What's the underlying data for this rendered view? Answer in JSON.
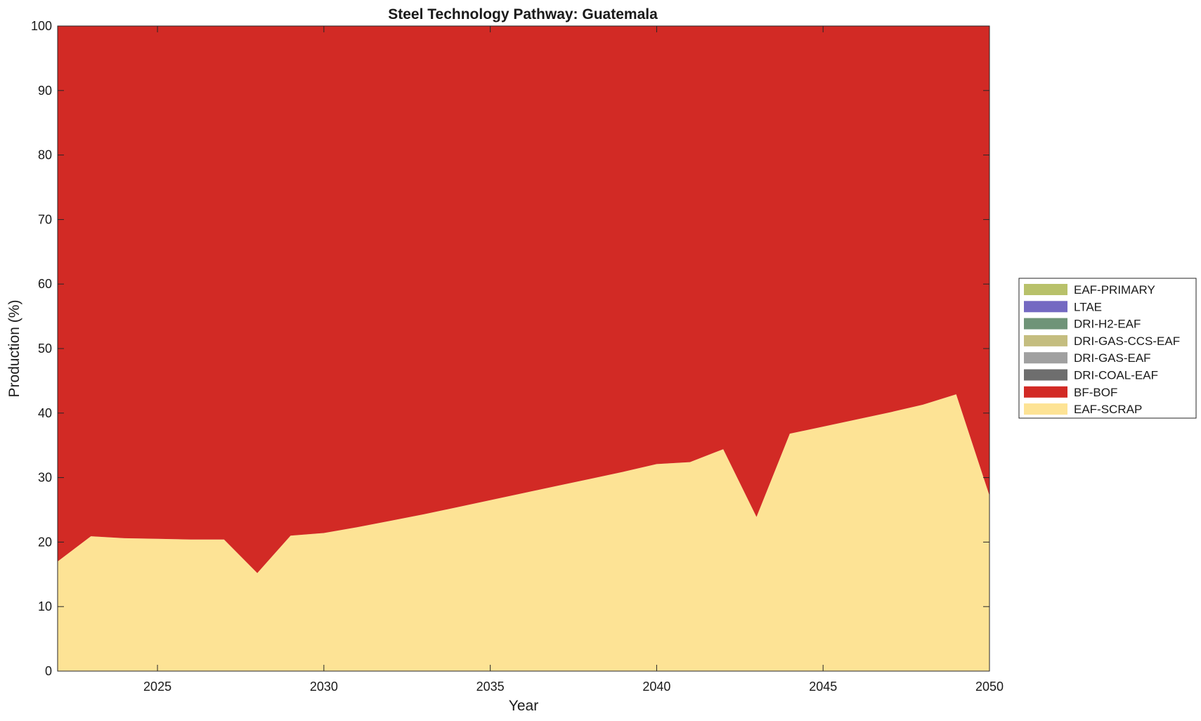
{
  "chart_data": {
    "type": "area",
    "stacked": true,
    "title": "Steel Technology Pathway: Guatemala",
    "xlabel": "Year",
    "ylabel": "Production (%)",
    "xlim": [
      2022,
      2050
    ],
    "ylim": [
      0,
      100
    ],
    "x_ticks": [
      2025,
      2030,
      2035,
      2040,
      2045,
      2050
    ],
    "y_ticks": [
      0,
      10,
      20,
      30,
      40,
      50,
      60,
      70,
      80,
      90,
      100
    ],
    "x": [
      2022,
      2023,
      2024,
      2025,
      2026,
      2027,
      2028,
      2029,
      2030,
      2031,
      2032,
      2033,
      2034,
      2035,
      2036,
      2037,
      2038,
      2039,
      2040,
      2041,
      2042,
      2043,
      2044,
      2045,
      2046,
      2047,
      2048,
      2049,
      2050
    ],
    "series": [
      {
        "name": "EAF-SCRAP",
        "color": "#fde395",
        "values": [
          17.0,
          20.9,
          20.6,
          20.5,
          20.4,
          20.4,
          15.2,
          21.0,
          21.4,
          22.3,
          23.3,
          24.3,
          25.4,
          26.5,
          27.6,
          28.7,
          29.8,
          30.9,
          32.1,
          32.4,
          34.4,
          23.9,
          36.8,
          37.9,
          39.0,
          40.1,
          41.3,
          42.9,
          27.2
        ]
      },
      {
        "name": "BF-BOF",
        "color": "#d22a25",
        "values": [
          83.0,
          79.1,
          79.4,
          79.5,
          79.6,
          79.6,
          84.8,
          79.0,
          78.6,
          77.7,
          76.7,
          75.7,
          74.6,
          73.5,
          72.4,
          71.3,
          70.2,
          69.1,
          67.9,
          67.6,
          65.6,
          76.1,
          63.2,
          62.1,
          61.0,
          59.9,
          58.7,
          57.1,
          72.8
        ]
      },
      {
        "name": "DRI-COAL-EAF",
        "color": "#6e6e6e",
        "values": [
          0,
          0,
          0,
          0,
          0,
          0,
          0,
          0,
          0,
          0,
          0,
          0,
          0,
          0,
          0,
          0,
          0,
          0,
          0,
          0,
          0,
          0,
          0,
          0,
          0,
          0,
          0,
          0,
          0
        ]
      },
      {
        "name": "DRI-GAS-EAF",
        "color": "#a0a0a0",
        "values": [
          0,
          0,
          0,
          0,
          0,
          0,
          0,
          0,
          0,
          0,
          0,
          0,
          0,
          0,
          0,
          0,
          0,
          0,
          0,
          0,
          0,
          0,
          0,
          0,
          0,
          0,
          0,
          0,
          0
        ]
      },
      {
        "name": "DRI-GAS-CCS-EAF",
        "color": "#c4bd7f",
        "values": [
          0,
          0,
          0,
          0,
          0,
          0,
          0,
          0,
          0,
          0,
          0,
          0,
          0,
          0,
          0,
          0,
          0,
          0,
          0,
          0,
          0,
          0,
          0,
          0,
          0,
          0,
          0,
          0,
          0
        ]
      },
      {
        "name": "DRI-H2-EAF",
        "color": "#6f9478",
        "values": [
          0,
          0,
          0,
          0,
          0,
          0,
          0,
          0,
          0,
          0,
          0,
          0,
          0,
          0,
          0,
          0,
          0,
          0,
          0,
          0,
          0,
          0,
          0,
          0,
          0,
          0,
          0,
          0,
          0
        ]
      },
      {
        "name": "LTAE",
        "color": "#7469c2",
        "values": [
          0,
          0,
          0,
          0,
          0,
          0,
          0,
          0,
          0,
          0,
          0,
          0,
          0,
          0,
          0,
          0,
          0,
          0,
          0,
          0,
          0,
          0,
          0,
          0,
          0,
          0,
          0,
          0,
          0
        ]
      },
      {
        "name": "EAF-PRIMARY",
        "color": "#b8c16a",
        "values": [
          0,
          0,
          0,
          0,
          0,
          0,
          0,
          0,
          0,
          0,
          0,
          0,
          0,
          0,
          0,
          0,
          0,
          0,
          0,
          0,
          0,
          0,
          0,
          0,
          0,
          0,
          0,
          0,
          0
        ]
      }
    ],
    "legend": {
      "placement": "right",
      "order": [
        "EAF-PRIMARY",
        "LTAE",
        "DRI-H2-EAF",
        "DRI-GAS-CCS-EAF",
        "DRI-GAS-EAF",
        "DRI-COAL-EAF",
        "BF-BOF",
        "EAF-SCRAP"
      ]
    },
    "grid": false
  }
}
